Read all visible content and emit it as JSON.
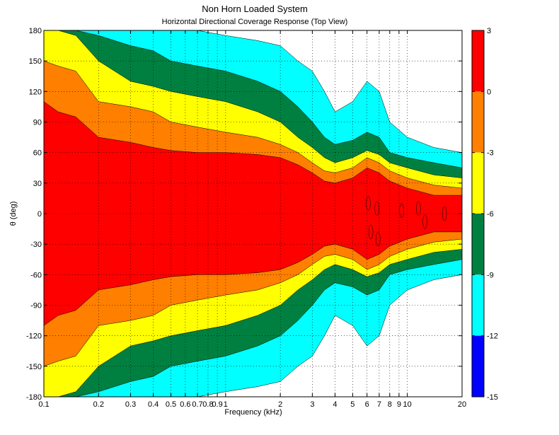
{
  "chart_data": {
    "type": "heatmap",
    "title": "Non Horn Loaded System",
    "subtitle": "Horizontal Directional Coverage Response (Top View)",
    "xlabel": "Frequency (kHz)",
    "ylabel": "θ (deg)",
    "x_scale": "log",
    "xlim": [
      0.1,
      20
    ],
    "ylim": [
      -180,
      180
    ],
    "grid": true,
    "x_ticks": [
      0.1,
      0.2,
      0.3,
      0.4,
      0.5,
      0.6,
      0.7,
      0.8,
      0.9,
      1,
      2,
      3,
      4,
      5,
      6,
      7,
      8,
      9,
      10,
      20
    ],
    "x_tick_labels": [
      "0.1",
      "0.2",
      "0.3",
      "0.4",
      "0.5",
      "0.6",
      "0.7",
      "0.8",
      "0.9",
      "1",
      "2",
      "3",
      "4",
      "5",
      "6",
      "7",
      "8",
      "9",
      "10",
      "20"
    ],
    "y_ticks": [
      180,
      150,
      120,
      90,
      60,
      30,
      0,
      -30,
      -60,
      -90,
      -120,
      -150,
      -180
    ],
    "y_tick_labels": [
      "180",
      "150",
      "120",
      "90",
      "60",
      "30",
      "0",
      "-30",
      "-60",
      "-90",
      "-120",
      "-150",
      "-180"
    ],
    "colorbar": {
      "ticks": [
        "3",
        "0",
        "-3",
        "-6",
        "-9",
        "-12",
        "-15"
      ],
      "levels": [
        {
          "from": 0,
          "to": 3,
          "color": "#ff0000"
        },
        {
          "from": -3,
          "to": 0,
          "color": "#ff7f00"
        },
        {
          "from": -6,
          "to": -3,
          "color": "#ffff00"
        },
        {
          "from": -9,
          "to": -6,
          "color": "#008040"
        },
        {
          "from": -12,
          "to": -9,
          "color": "#00ffff"
        },
        {
          "from": -15,
          "to": -12,
          "color": "#0000ff"
        }
      ]
    },
    "coverage_boundaries_deg": {
      "frequency_khz": [
        0.1,
        0.12,
        0.15,
        0.2,
        0.3,
        0.4,
        0.5,
        0.7,
        1,
        1.5,
        2,
        2.5,
        3,
        3.5,
        4,
        5,
        6,
        7,
        8,
        10,
        14,
        20
      ],
      "minus3": [
        110,
        100,
        95,
        75,
        70,
        65,
        62,
        60,
        60,
        58,
        55,
        48,
        40,
        32,
        30,
        35,
        45,
        40,
        32,
        25,
        18,
        18
      ],
      "minus6": [
        150,
        145,
        140,
        110,
        105,
        100,
        90,
        85,
        80,
        75,
        68,
        60,
        50,
        42,
        40,
        45,
        55,
        50,
        42,
        35,
        28,
        25
      ],
      "minus9": [
        180,
        180,
        175,
        150,
        130,
        125,
        120,
        115,
        110,
        100,
        90,
        75,
        65,
        55,
        50,
        55,
        62,
        58,
        50,
        45,
        38,
        35
      ],
      "minus12": [
        180,
        180,
        180,
        175,
        165,
        160,
        150,
        145,
        140,
        130,
        120,
        105,
        90,
        75,
        68,
        72,
        80,
        75,
        60,
        55,
        50,
        45
      ],
      "minus15": [
        180,
        180,
        180,
        180,
        180,
        180,
        180,
        180,
        175,
        170,
        165,
        150,
        140,
        120,
        100,
        110,
        130,
        120,
        90,
        75,
        65,
        60
      ]
    },
    "peak_regions_above_0dB": [
      {
        "frequency_khz": 6.1,
        "theta_deg": 10
      },
      {
        "frequency_khz": 6.3,
        "theta_deg": -18
      },
      {
        "frequency_khz": 6.8,
        "theta_deg": 5
      },
      {
        "frequency_khz": 6.9,
        "theta_deg": -25
      },
      {
        "frequency_khz": 9.3,
        "theta_deg": 3
      },
      {
        "frequency_khz": 11.5,
        "theta_deg": 5
      },
      {
        "frequency_khz": 12.5,
        "theta_deg": -8
      },
      {
        "frequency_khz": 16,
        "theta_deg": 0
      }
    ]
  }
}
